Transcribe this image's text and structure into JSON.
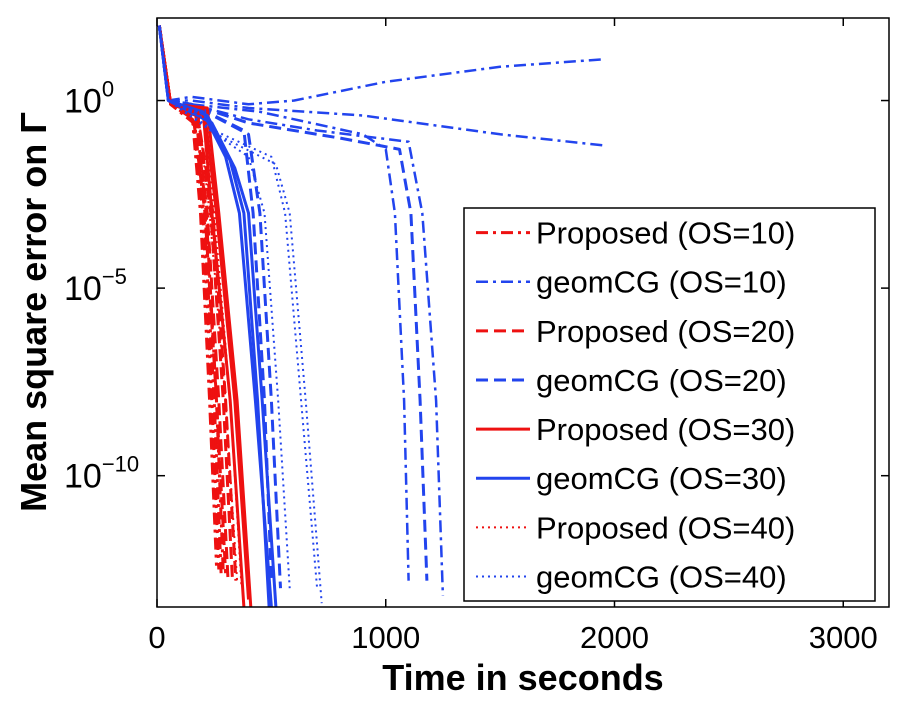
{
  "chart_data": {
    "type": "line",
    "title": "",
    "xlabel": "Time in seconds",
    "ylabel": "Mean square error on Γ",
    "xlim": [
      0,
      3200
    ],
    "ylim_log10": [
      -13.5,
      2.2
    ],
    "y_scale": "log",
    "x_ticks": [
      {
        "value": 0,
        "label": "0"
      },
      {
        "value": 1000,
        "label": "1000"
      },
      {
        "value": 2000,
        "label": "2000"
      },
      {
        "value": 3000,
        "label": "3000"
      }
    ],
    "y_ticks": [
      {
        "exp": 0,
        "base": "10",
        "sup": "0"
      },
      {
        "exp": -5,
        "base": "10",
        "sup": "−5"
      },
      {
        "exp": -10,
        "base": "10",
        "sup": "−10"
      }
    ],
    "legend_position": "right",
    "colors": {
      "red": "#ee1111",
      "blue": "#2244ee"
    },
    "series": [
      {
        "name": "Proposed (OS=10)",
        "color": "#ee1111",
        "style": "dashdot",
        "width": 3,
        "runs": [
          [
            [
              10,
              2
            ],
            [
              60,
              -0.1
            ],
            [
              160,
              -0.6
            ],
            [
              200,
              -3
            ],
            [
              240,
              -8
            ],
            [
              270,
              -12.5
            ]
          ],
          [
            [
              10,
              2
            ],
            [
              60,
              -0.1
            ],
            [
              155,
              -0.5
            ],
            [
              190,
              -3
            ],
            [
              230,
              -8
            ],
            [
              260,
              -12.4
            ]
          ],
          [
            [
              10,
              2
            ],
            [
              60,
              -0.1
            ],
            [
              165,
              -0.6
            ],
            [
              205,
              -3
            ],
            [
              250,
              -8
            ],
            [
              280,
              -12.6
            ]
          ],
          [
            [
              10,
              2
            ],
            [
              60,
              -0.1
            ],
            [
              170,
              -0.4
            ],
            [
              215,
              -3
            ],
            [
              260,
              -8
            ],
            [
              290,
              -12.6
            ]
          ]
        ]
      },
      {
        "name": "geomCG (OS=10)",
        "color": "#2244ee",
        "style": "dashdot",
        "width": 2.5,
        "runs": [
          [
            [
              10,
              2
            ],
            [
              50,
              0
            ],
            [
              150,
              -0.1
            ],
            [
              450,
              -0.3
            ],
            [
              900,
              -0.9
            ],
            [
              1000,
              -1.3
            ],
            [
              1040,
              -3
            ],
            [
              1080,
              -8
            ],
            [
              1100,
              -12.8
            ]
          ],
          [
            [
              10,
              2
            ],
            [
              50,
              0
            ],
            [
              150,
              0.1
            ],
            [
              400,
              -0.1
            ],
            [
              600,
              0
            ],
            [
              1000,
              0.5
            ],
            [
              1500,
              0.9
            ],
            [
              1950,
              1.1
            ]
          ],
          [
            [
              10,
              2
            ],
            [
              50,
              0
            ],
            [
              150,
              -0.1
            ],
            [
              400,
              -0.5
            ],
            [
              700,
              -0.8
            ],
            [
              1100,
              -1.1
            ],
            [
              1160,
              -3
            ],
            [
              1220,
              -8
            ],
            [
              1250,
              -13.2
            ]
          ],
          [
            [
              10,
              2
            ],
            [
              50,
              0
            ],
            [
              150,
              0
            ],
            [
              400,
              -0.2
            ],
            [
              900,
              -0.4
            ],
            [
              1500,
              -0.9
            ],
            [
              1960,
              -1.2
            ]
          ]
        ]
      },
      {
        "name": "Proposed (OS=20)",
        "color": "#ee1111",
        "style": "dashed",
        "width": 3,
        "runs": [
          [
            [
              10,
              2
            ],
            [
              60,
              -0.1
            ],
            [
              160,
              -0.5
            ],
            [
              210,
              -3
            ],
            [
              260,
              -8
            ],
            [
              300,
              -12.6
            ]
          ],
          [
            [
              10,
              2
            ],
            [
              60,
              -0.1
            ],
            [
              170,
              -0.4
            ],
            [
              220,
              -3
            ],
            [
              270,
              -8
            ],
            [
              310,
              -12.7
            ]
          ],
          [
            [
              10,
              2
            ],
            [
              60,
              -0.1
            ],
            [
              180,
              -0.5
            ],
            [
              235,
              -3
            ],
            [
              290,
              -8
            ],
            [
              330,
              -12.8
            ]
          ],
          [
            [
              10,
              2
            ],
            [
              60,
              -0.1
            ],
            [
              175,
              -0.3
            ],
            [
              245,
              -3
            ],
            [
              300,
              -8
            ],
            [
              345,
              -12.8
            ]
          ]
        ]
      },
      {
        "name": "geomCG (OS=20)",
        "color": "#2244ee",
        "style": "dashed",
        "width": 3,
        "runs": [
          [
            [
              10,
              2
            ],
            [
              50,
              0
            ],
            [
              150,
              -0.1
            ],
            [
              400,
              -0.6
            ],
            [
              800,
              -1.0
            ],
            [
              1060,
              -1.3
            ],
            [
              1110,
              -3
            ],
            [
              1150,
              -8
            ],
            [
              1180,
              -12.8
            ]
          ],
          [
            [
              10,
              2
            ],
            [
              50,
              0
            ],
            [
              150,
              -0.1
            ],
            [
              380,
              -0.8
            ],
            [
              420,
              -3
            ],
            [
              470,
              -8
            ],
            [
              500,
              -12.8
            ]
          ],
          [
            [
              10,
              2
            ],
            [
              50,
              0
            ],
            [
              150,
              -0.1
            ],
            [
              400,
              -0.9
            ],
            [
              450,
              -3
            ],
            [
              500,
              -8
            ],
            [
              540,
              -13
            ]
          ]
        ]
      },
      {
        "name": "Proposed (OS=30)",
        "color": "#ee1111",
        "style": "solid",
        "width": 3,
        "runs": [
          [
            [
              10,
              2
            ],
            [
              60,
              -0.1
            ],
            [
              200,
              -0.2
            ],
            [
              240,
              -3
            ],
            [
              320,
              -8
            ],
            [
              380,
              -13.5
            ]
          ],
          [
            [
              10,
              2
            ],
            [
              60,
              -0.1
            ],
            [
              220,
              -0.2
            ],
            [
              270,
              -3
            ],
            [
              350,
              -8
            ],
            [
              410,
              -13.5
            ]
          ],
          [
            [
              10,
              2
            ],
            [
              60,
              -0.1
            ],
            [
              210,
              -0.4
            ],
            [
              260,
              -3
            ],
            [
              340,
              -8
            ],
            [
              400,
              -13.3
            ]
          ]
        ]
      },
      {
        "name": "geomCG (OS=30)",
        "color": "#2244ee",
        "style": "solid",
        "width": 3,
        "runs": [
          [
            [
              10,
              2
            ],
            [
              50,
              0
            ],
            [
              200,
              -0.3
            ],
            [
              300,
              -1.5
            ],
            [
              360,
              -3
            ],
            [
              430,
              -8
            ],
            [
              500,
              -13.5
            ]
          ],
          [
            [
              10,
              2
            ],
            [
              50,
              0
            ],
            [
              220,
              -0.4
            ],
            [
              320,
              -1.6
            ],
            [
              380,
              -3
            ],
            [
              440,
              -8
            ],
            [
              490,
              -13.5
            ]
          ],
          [
            [
              10,
              2
            ],
            [
              50,
              0
            ],
            [
              240,
              -0.6
            ],
            [
              340,
              -1.8
            ],
            [
              400,
              -3
            ],
            [
              460,
              -8
            ],
            [
              520,
              -13.5
            ]
          ]
        ]
      },
      {
        "name": "Proposed (OS=40)",
        "color": "#ee1111",
        "style": "dotted",
        "width": 2,
        "runs": [
          [
            [
              10,
              2
            ],
            [
              60,
              -0.1
            ],
            [
              180,
              -0.3
            ],
            [
              230,
              -3
            ],
            [
              300,
              -8
            ],
            [
              350,
              -12.8
            ]
          ],
          [
            [
              10,
              2
            ],
            [
              60,
              -0.1
            ],
            [
              200,
              -0.4
            ],
            [
              250,
              -3
            ],
            [
              320,
              -8
            ],
            [
              370,
              -13
            ]
          ]
        ]
      },
      {
        "name": "geomCG (OS=40)",
        "color": "#2244ee",
        "style": "dotted",
        "width": 2,
        "runs": [
          [
            [
              10,
              2
            ],
            [
              50,
              0
            ],
            [
              250,
              -0.8
            ],
            [
              500,
              -1.5
            ],
            [
              560,
              -3
            ],
            [
              630,
              -8
            ],
            [
              700,
              -13
            ]
          ],
          [
            [
              10,
              2
            ],
            [
              50,
              0
            ],
            [
              260,
              -0.9
            ],
            [
              520,
              -1.7
            ],
            [
              580,
              -3
            ],
            [
              650,
              -8
            ],
            [
              720,
              -13.4
            ]
          ],
          [
            [
              10,
              2
            ],
            [
              50,
              0
            ],
            [
              280,
              -1.0
            ],
            [
              400,
              -1.5
            ],
            [
              470,
              -3
            ],
            [
              530,
              -8
            ],
            [
              580,
              -13
            ]
          ]
        ]
      }
    ]
  }
}
